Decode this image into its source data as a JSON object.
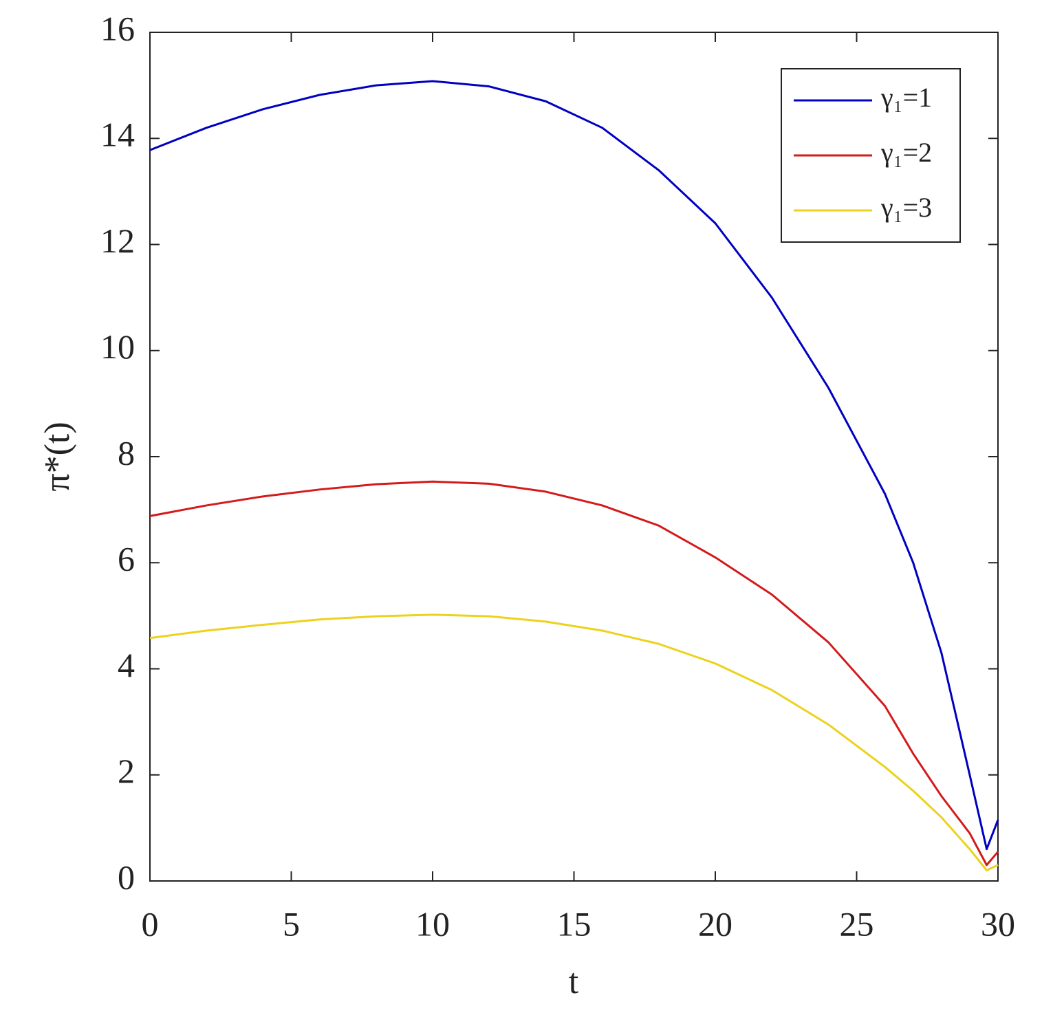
{
  "chart_data": {
    "type": "line",
    "x_label": "t",
    "y_label": "π*(t)",
    "x": [
      0,
      2,
      4,
      6,
      8,
      10,
      12,
      14,
      16,
      18,
      20,
      22,
      24,
      26,
      27,
      28,
      29,
      29.6,
      30
    ],
    "series": [
      {
        "name": "γ₁=1",
        "color": "#0000c0",
        "values": [
          13.78,
          14.2,
          14.55,
          14.82,
          15.0,
          15.08,
          14.98,
          14.7,
          14.2,
          13.4,
          12.4,
          11.0,
          9.3,
          7.3,
          6.0,
          4.3,
          2.0,
          0.6,
          1.15
        ]
      },
      {
        "name": "γ₁=2",
        "color": "#d41a1a",
        "values": [
          6.88,
          7.08,
          7.25,
          7.38,
          7.48,
          7.53,
          7.49,
          7.34,
          7.08,
          6.7,
          6.1,
          5.4,
          4.5,
          3.3,
          2.4,
          1.6,
          0.9,
          0.3,
          0.55
        ]
      },
      {
        "name": "γ₁=3",
        "color": "#ecd21c",
        "values": [
          4.58,
          4.72,
          4.83,
          4.93,
          4.99,
          5.02,
          4.99,
          4.89,
          4.72,
          4.47,
          4.1,
          3.6,
          2.95,
          2.15,
          1.7,
          1.2,
          0.6,
          0.2,
          0.3
        ]
      }
    ],
    "xlim": [
      0,
      30
    ],
    "xticks": [
      0,
      5,
      10,
      15,
      20,
      25,
      30
    ],
    "ylim": [
      0,
      16
    ],
    "yticks": [
      0,
      2,
      4,
      6,
      8,
      10,
      12,
      14,
      16
    ],
    "legend": "upper right"
  }
}
